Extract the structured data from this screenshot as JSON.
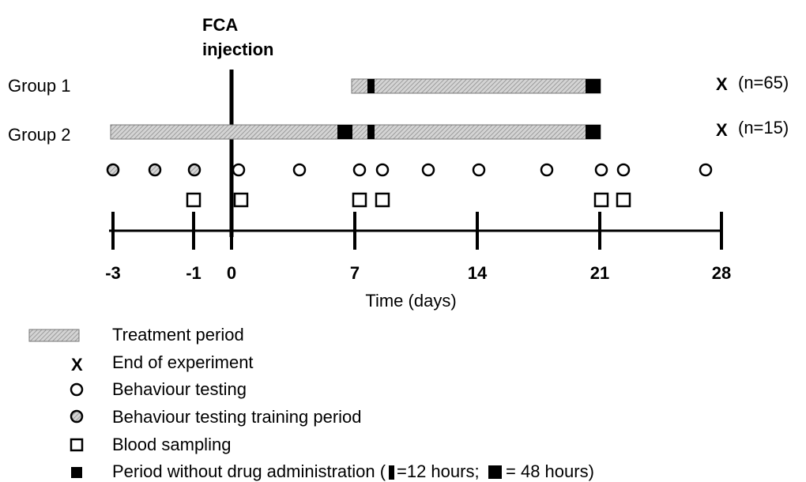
{
  "header": {
    "title_line1": "FCA",
    "title_line2": "injection"
  },
  "groups": [
    {
      "label": "Group 1",
      "end": "X",
      "n": "(n=65)"
    },
    {
      "label": "Group 2",
      "end": "X",
      "n": "(n=15)"
    }
  ],
  "axis": {
    "ticks": [
      "-3",
      "-1",
      "0",
      "7",
      "14",
      "21",
      "28"
    ],
    "label": "Time (days)"
  },
  "legend": {
    "treatment": "Treatment period",
    "end": "End of experiment",
    "end_symbol": "X",
    "behaviour": "Behaviour testing",
    "training": "Behaviour testing training period",
    "blood": "Blood sampling",
    "no_drug": "Period without drug administration (",
    "no_drug_12h": "=12 hours;",
    "no_drug_48h": "= 48 hours)"
  }
}
